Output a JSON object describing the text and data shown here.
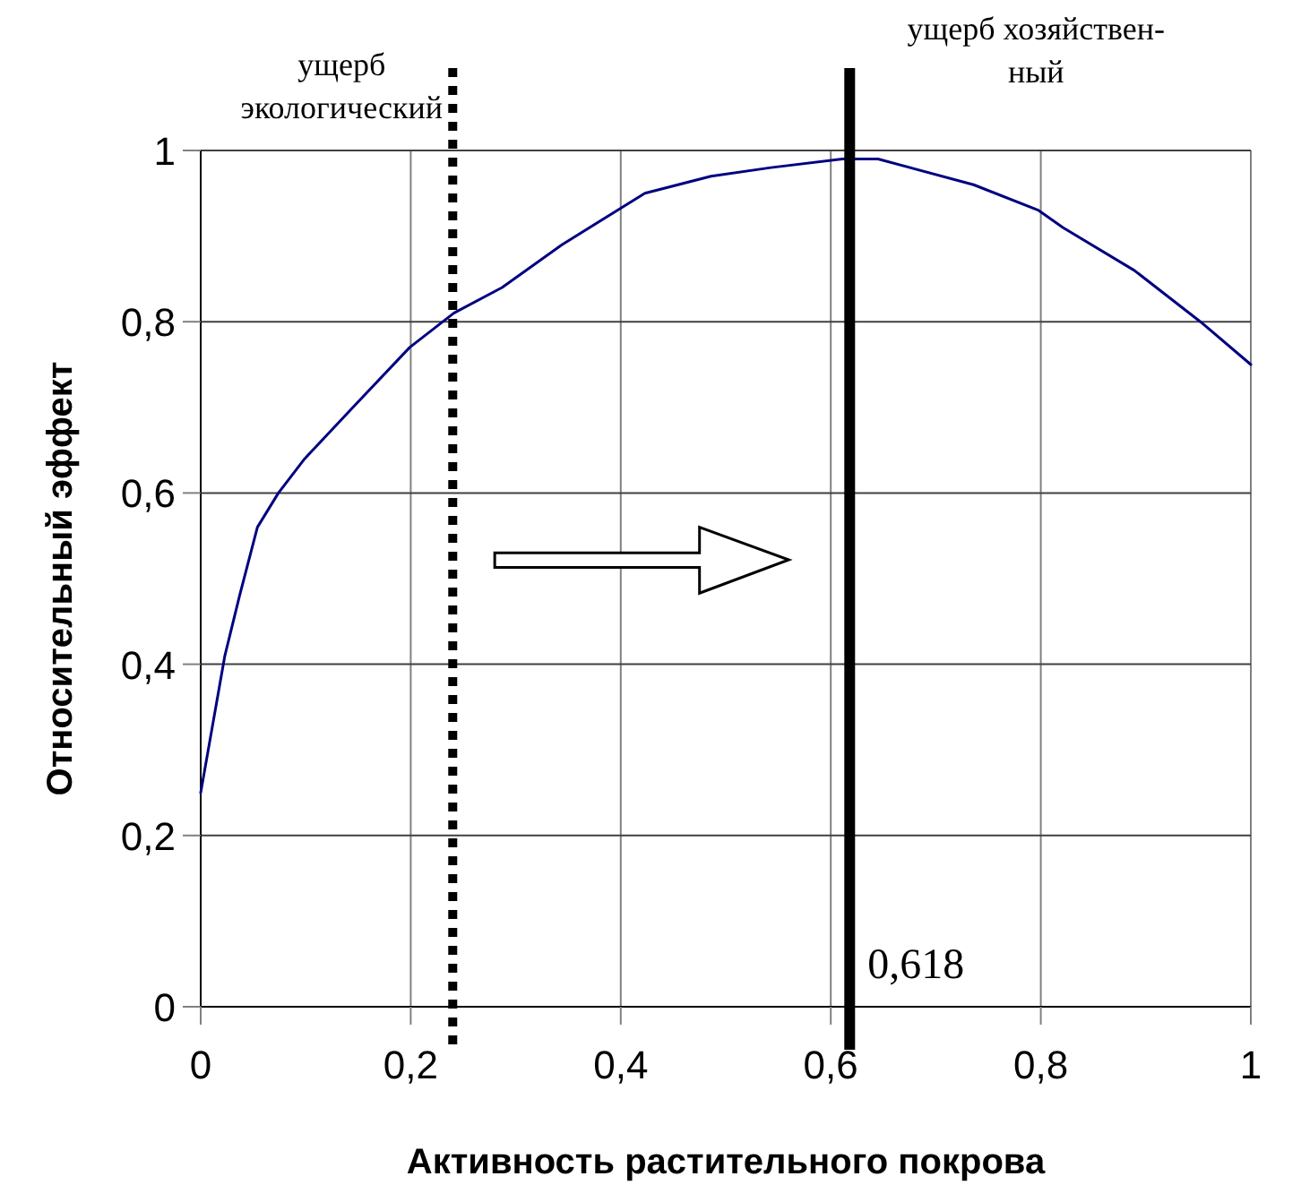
{
  "chart_data": {
    "type": "line",
    "xlabel": "Активность растительного покрова",
    "ylabel": "Относительный эффект",
    "xlim": [
      0,
      1
    ],
    "ylim": [
      0,
      1
    ],
    "xticks": [
      0,
      {
        "value": 0.2,
        "label": "0,2"
      },
      {
        "value": 0.4,
        "label": "0,4"
      },
      {
        "value": 0.6,
        "label": "0,6"
      },
      {
        "value": 0.8,
        "label": "0,8"
      },
      1
    ],
    "yticks": [
      0,
      {
        "value": 0.2,
        "label": "0,2"
      },
      {
        "value": 0.4,
        "label": "0,4"
      },
      {
        "value": 0.6,
        "label": "0,6"
      },
      {
        "value": 0.8,
        "label": "0,8"
      },
      1
    ],
    "grid": true,
    "marker": "none",
    "line_style": "solid",
    "series": [
      {
        "color": "#000080",
        "x": [
          0,
          0.023,
          0.037,
          0.054,
          0.074,
          0.099,
          0.145,
          0.199,
          0.241,
          0.287,
          0.344,
          0.423,
          0.486,
          0.543,
          0.611,
          0.645,
          0.736,
          0.798,
          0.821,
          0.889,
          0.952,
          1
        ],
        "values": [
          0.25,
          0.41,
          0.48,
          0.56,
          0.6,
          0.64,
          0.7,
          0.77,
          0.81,
          0.84,
          0.89,
          0.95,
          0.97,
          0.98,
          0.99,
          0.99,
          0.96,
          0.93,
          0.91,
          0.86,
          0.8,
          0.75
        ]
      }
    ],
    "ref_lines": [
      {
        "axis": "x",
        "value": 0.24,
        "label": "ущерб\nэкологический",
        "color": "#000000",
        "line_style": "dotted"
      },
      {
        "axis": "x",
        "value": 0.618,
        "label": "ущерб хозяйствен-\nный",
        "color": "#000000",
        "line_style": "solid"
      }
    ],
    "annotations": [
      {
        "text": "0,618",
        "x": 0.618,
        "y": 0.05
      }
    ]
  }
}
